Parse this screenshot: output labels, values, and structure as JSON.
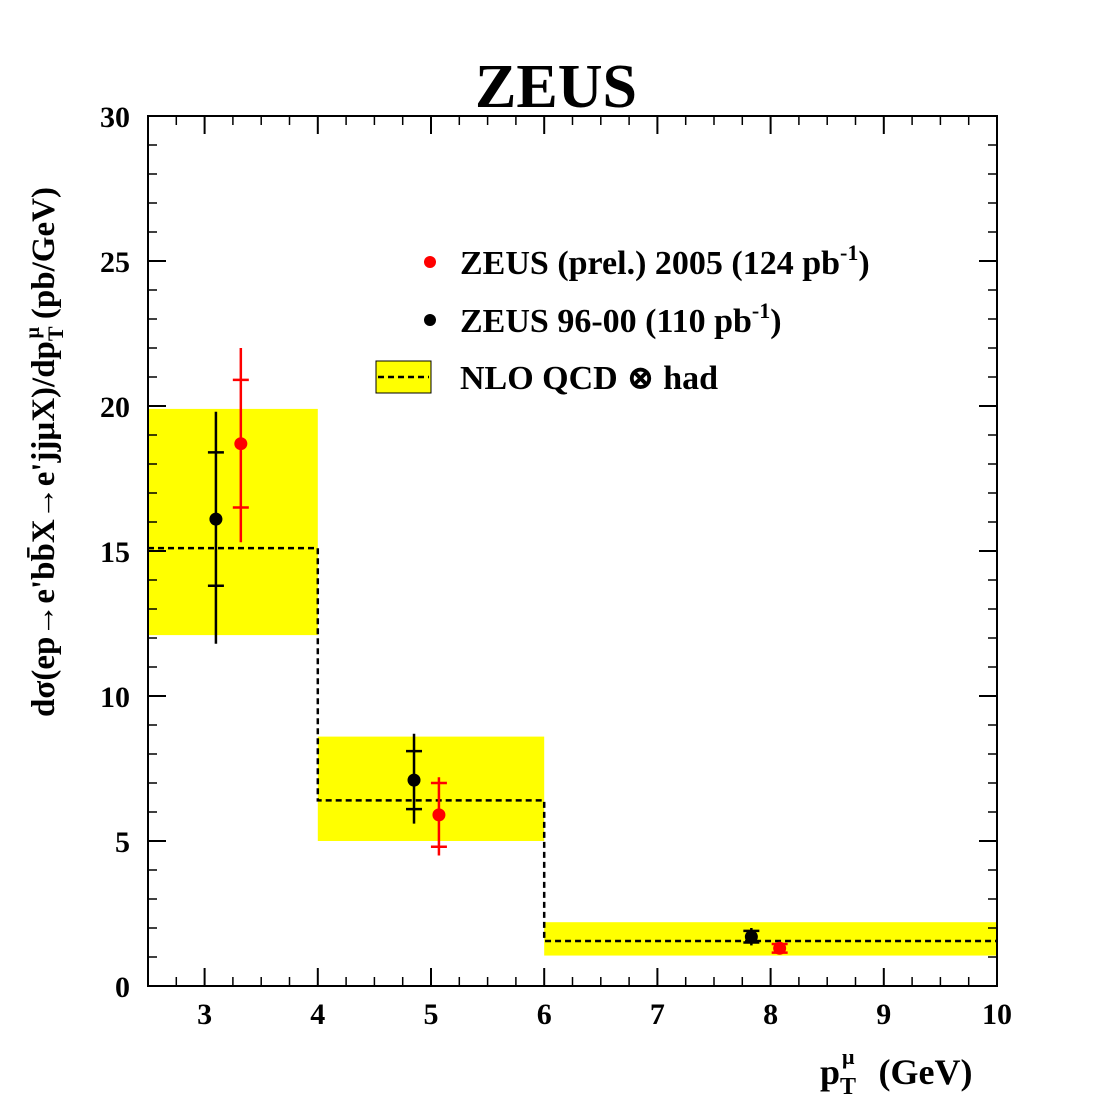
{
  "chart_data": {
    "type": "scatter",
    "title": "ZEUS",
    "xlabel": "(GeV)",
    "xlabel_var": "p",
    "xlabel_sub": "T",
    "xlabel_sup": "μ",
    "ylabel": "dσ(ep→e'bb̄X→e'jjμX)/dp",
    "ylabel_sub": "T",
    "ylabel_sup": "μ",
    "ylabel_unit": "(pb/GeV)",
    "xlim": [
      2.5,
      10
    ],
    "ylim": [
      0,
      30
    ],
    "xticks": [
      3,
      4,
      5,
      6,
      7,
      8,
      9,
      10
    ],
    "yticks": [
      0,
      5,
      10,
      15,
      20,
      25,
      30
    ],
    "legend_position": "top-right",
    "nlo": {
      "name": "NLO QCD ⊗ had",
      "bins": [
        {
          "xlo": 2.5,
          "xhi": 4,
          "central": 15.1,
          "low": 12.1,
          "high": 19.9
        },
        {
          "xlo": 4,
          "xhi": 6,
          "central": 6.4,
          "low": 5.0,
          "high": 8.6
        },
        {
          "xlo": 6,
          "xhi": 10,
          "central": 1.55,
          "low": 1.05,
          "high": 2.2
        }
      ]
    },
    "series": [
      {
        "name": "ZEUS (prel.) 2005 (124 pb",
        "lumi_sup": "-1",
        "close": ")",
        "color": "#ff0000",
        "points": [
          {
            "x": 3.32,
            "y": 18.7,
            "stat_lo": 16.5,
            "stat_hi": 20.9,
            "tot_lo": 15.3,
            "tot_hi": 22.0
          },
          {
            "x": 5.07,
            "y": 5.9,
            "stat_lo": 4.8,
            "stat_hi": 7.0,
            "tot_lo": 4.5,
            "tot_hi": 7.2
          },
          {
            "x": 8.08,
            "y": 1.3,
            "stat_lo": 1.15,
            "stat_hi": 1.45,
            "tot_lo": 1.1,
            "tot_hi": 1.5
          }
        ]
      },
      {
        "name": "ZEUS 96-00 (110 pb",
        "lumi_sup": "-1",
        "close": ")",
        "color": "#000000",
        "points": [
          {
            "x": 3.1,
            "y": 16.1,
            "stat_lo": 13.8,
            "stat_hi": 18.4,
            "tot_lo": 11.8,
            "tot_hi": 19.8
          },
          {
            "x": 4.85,
            "y": 7.1,
            "stat_lo": 6.1,
            "stat_hi": 8.1,
            "tot_lo": 5.6,
            "tot_hi": 8.7
          },
          {
            "x": 7.83,
            "y": 1.7,
            "stat_lo": 1.5,
            "stat_hi": 1.9,
            "tot_lo": 1.4,
            "tot_hi": 2.0
          }
        ]
      }
    ],
    "colors": {
      "band": "#ffff00",
      "frame": "#000000"
    }
  }
}
